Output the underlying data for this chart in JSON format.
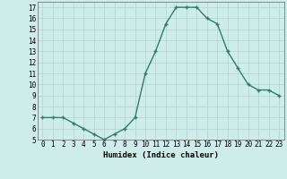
{
  "x": [
    0,
    1,
    2,
    3,
    4,
    5,
    6,
    7,
    8,
    9,
    10,
    11,
    12,
    13,
    14,
    15,
    16,
    17,
    18,
    19,
    20,
    21,
    22,
    23
  ],
  "y": [
    7,
    7,
    7,
    6.5,
    6,
    5.5,
    5,
    5.5,
    6,
    7,
    11,
    13,
    15.5,
    17,
    17,
    17,
    16,
    15.5,
    13,
    11.5,
    10,
    9.5,
    9.5,
    9
  ],
  "line_color": "#2e7d6e",
  "marker": "+",
  "marker_size": 3.5,
  "bg_color": "#ceecea",
  "grid_color": "#b0d4d0",
  "xlabel": "Humidex (Indice chaleur)",
  "xlim": [
    -0.5,
    23.5
  ],
  "ylim": [
    5,
    17.5
  ],
  "yticks": [
    5,
    6,
    7,
    8,
    9,
    10,
    11,
    12,
    13,
    14,
    15,
    16,
    17
  ],
  "xticks": [
    0,
    1,
    2,
    3,
    4,
    5,
    6,
    7,
    8,
    9,
    10,
    11,
    12,
    13,
    14,
    15,
    16,
    17,
    18,
    19,
    20,
    21,
    22,
    23
  ],
  "xlabel_fontsize": 6.5,
  "tick_fontsize": 5.5,
  "line_width": 1.0
}
